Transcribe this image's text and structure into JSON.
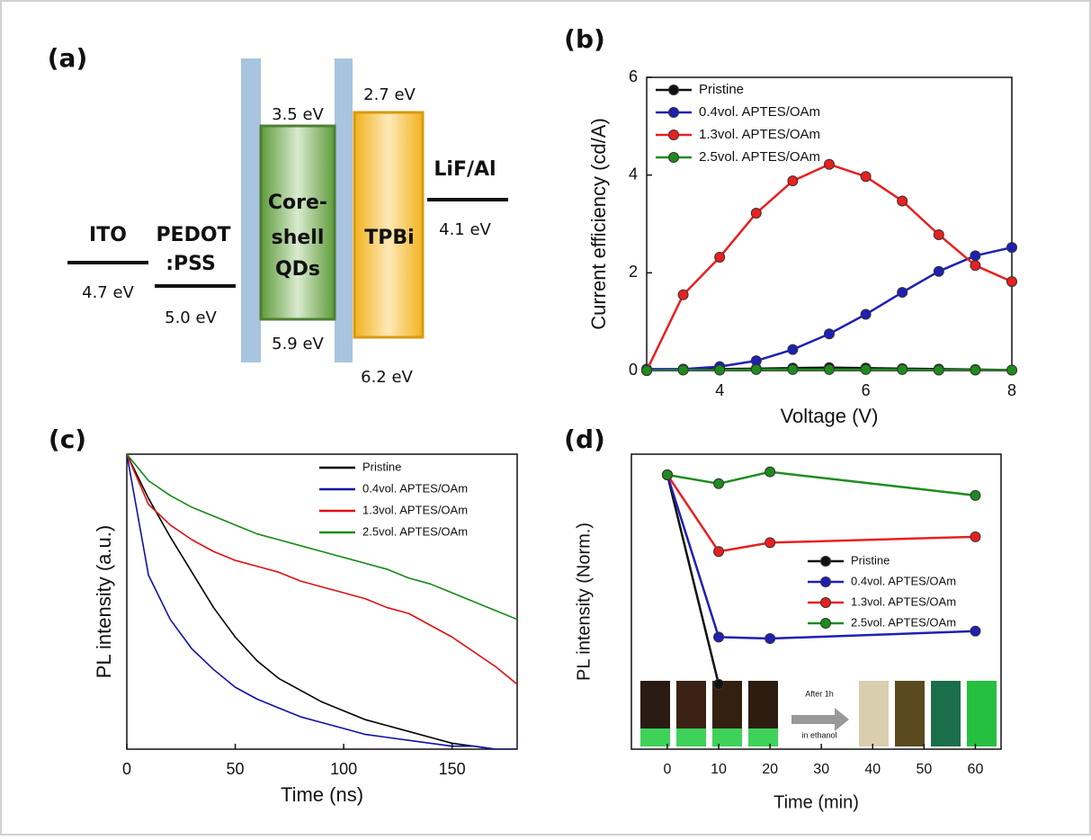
{
  "diagram": {
    "label": "(a)",
    "ito": {
      "name": "ITO",
      "level": "4.7 eV"
    },
    "pedot": {
      "name": [
        "PEDOT",
        ":PSS"
      ],
      "level": "5.0 eV"
    },
    "qds": {
      "name": [
        "Core-",
        "shell",
        "QDs"
      ],
      "top": "3.5 eV",
      "bottom": "5.9 eV"
    },
    "tpbi": {
      "name": "TPBi",
      "top": "2.7 eV",
      "bottom": "6.2 eV"
    },
    "lif": {
      "name": "LiF/Al",
      "level": "4.1 eV"
    }
  },
  "chart_data": [
    {
      "type": "line",
      "panel_label": "(b)",
      "x_label": "Voltage (V)",
      "y_label": "Current efficiency (cd/A)",
      "x": [
        3,
        3.5,
        4,
        4.5,
        5,
        5.5,
        6,
        6.5,
        7,
        7.5,
        8
      ],
      "series": [
        {
          "name": "Pristine",
          "color": "#111111",
          "values": [
            0,
            0.02,
            0.03,
            0.04,
            0.05,
            0.06,
            0.05,
            0.04,
            0.03,
            0.02,
            0.01
          ]
        },
        {
          "name": "0.4vol. APTES/OAm",
          "color": "#1f1fb4",
          "values": [
            0.03,
            0.03,
            0.08,
            0.2,
            0.43,
            0.75,
            1.15,
            1.6,
            2.03,
            2.35,
            2.52
          ]
        },
        {
          "name": "1.3vol. APTES/OAm",
          "color": "#e82020",
          "values": [
            0,
            1.55,
            2.32,
            3.22,
            3.88,
            4.22,
            3.97,
            3.47,
            2.78,
            2.15,
            1.82
          ]
        },
        {
          "name": "2.5vol. APTES/OAm",
          "color": "#1d8c1d",
          "values": [
            0,
            0.01,
            0.01,
            0.02,
            0.02,
            0.02,
            0.02,
            0.02,
            0.01,
            0.01,
            0.01
          ]
        }
      ],
      "xlim": [
        3,
        8
      ],
      "ylim": [
        0,
        6
      ],
      "xticks": [
        4,
        6,
        8
      ],
      "yticks": [
        0,
        2,
        4,
        6
      ],
      "markers": true,
      "legend": "upper left"
    },
    {
      "type": "line",
      "panel_label": "(c)",
      "x_label": "Time (ns)",
      "y_label": "PL intensity (a.u.)",
      "x": [
        0,
        10,
        20,
        30,
        40,
        50,
        60,
        70,
        80,
        90,
        100,
        110,
        120,
        130,
        140,
        150,
        160,
        170,
        180
      ],
      "series": [
        {
          "name": "Pristine",
          "color": "#000000",
          "values": [
            1.0,
            0.85,
            0.72,
            0.6,
            0.48,
            0.38,
            0.3,
            0.24,
            0.2,
            0.16,
            0.13,
            0.1,
            0.08,
            0.06,
            0.04,
            0.02,
            0.01,
            0,
            0
          ]
        },
        {
          "name": "0.4vol. APTES/OAm",
          "color": "#1010a8",
          "values": [
            1.0,
            0.59,
            0.44,
            0.34,
            0.27,
            0.21,
            0.17,
            0.14,
            0.11,
            0.09,
            0.07,
            0.05,
            0.04,
            0.03,
            0.02,
            0.01,
            0.01,
            0,
            0
          ]
        },
        {
          "name": "1.3vol. APTES/OAm",
          "color": "#e01010",
          "values": [
            1.0,
            0.83,
            0.76,
            0.71,
            0.67,
            0.64,
            0.62,
            0.6,
            0.57,
            0.55,
            0.53,
            0.51,
            0.48,
            0.46,
            0.42,
            0.38,
            0.33,
            0.28,
            0.22
          ]
        },
        {
          "name": "2.5vol. APTES/OAm",
          "color": "#138a13",
          "values": [
            1.0,
            0.91,
            0.86,
            0.82,
            0.79,
            0.76,
            0.73,
            0.71,
            0.69,
            0.67,
            0.65,
            0.63,
            0.61,
            0.58,
            0.56,
            0.53,
            0.5,
            0.47,
            0.44
          ]
        }
      ],
      "xlim": [
        0,
        180
      ],
      "ylim": [
        0,
        1
      ],
      "xticks": [
        0,
        50,
        100,
        150
      ],
      "markers": false,
      "legend": "upper right"
    },
    {
      "type": "line",
      "panel_label": "(d)",
      "x_label": "Time (min)",
      "y_label": "PL intensity (Norm.)",
      "x": [
        0,
        10,
        20,
        60
      ],
      "series": [
        {
          "name": "Pristine",
          "color": "#111111",
          "values": [
            0.93,
            0.22,
            null,
            null
          ]
        },
        {
          "name": "0.4vol. APTES/OAm",
          "color": "#1f1fb4",
          "values": [
            0.93,
            0.38,
            0.375,
            0.4
          ]
        },
        {
          "name": "1.3vol. APTES/OAm",
          "color": "#e82020",
          "values": [
            0.93,
            0.67,
            0.7,
            0.72
          ]
        },
        {
          "name": "2.5vol. APTES/OAm",
          "color": "#1d8c1d",
          "values": [
            0.93,
            0.9,
            0.94,
            0.86
          ]
        }
      ],
      "xlim": [
        -7,
        65
      ],
      "ylim": [
        0,
        1
      ],
      "xticks": [
        0,
        10,
        20,
        30,
        40,
        50,
        60
      ],
      "markers": true,
      "legend": "center right",
      "annotations": [
        "After 1h",
        "in ethanol"
      ]
    }
  ]
}
